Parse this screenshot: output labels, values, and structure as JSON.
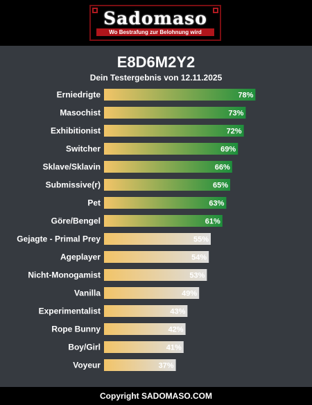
{
  "header": {
    "logo_text": "Sadomaso",
    "tagline": "Wo Bestrafung zur Belohnung wird"
  },
  "footer": {
    "copyright": "Copyright SADOMASO.COM"
  },
  "colors": {
    "background": "#363a40",
    "bar_start": "#f2c468",
    "bar_high_end": "#1e8f3c",
    "bar_low_end": "#dddddd",
    "accent": "#b0151b"
  },
  "chart_data": {
    "type": "bar",
    "orientation": "horizontal",
    "title": "E8D6M2Y2",
    "subtitle": "Dein Testergebnis von 12.11.2025",
    "xlim": [
      0,
      100
    ],
    "categories": [
      "Erniedrigte",
      "Masochist",
      "Exhibitionist",
      "Switcher",
      "Sklave/Sklavin",
      "Submissive(r)",
      "Pet",
      "Göre/Bengel",
      "Gejagte - Primal Prey",
      "Ageplayer",
      "Nicht-Monogamist",
      "Vanilla",
      "Experimentalist",
      "Rope Bunny",
      "Boy/Girl",
      "Voyeur"
    ],
    "values": [
      78,
      73,
      72,
      69,
      66,
      65,
      63,
      61,
      55,
      54,
      53,
      49,
      43,
      42,
      41,
      37
    ],
    "value_labels": [
      "78%",
      "73%",
      "72%",
      "69%",
      "66%",
      "65%",
      "63%",
      "61%",
      "55%",
      "54%",
      "53%",
      "49%",
      "43%",
      "42%",
      "41%",
      "37%"
    ],
    "highlighted": [
      true,
      true,
      true,
      true,
      true,
      true,
      true,
      true,
      false,
      false,
      false,
      false,
      false,
      false,
      false,
      false
    ]
  }
}
